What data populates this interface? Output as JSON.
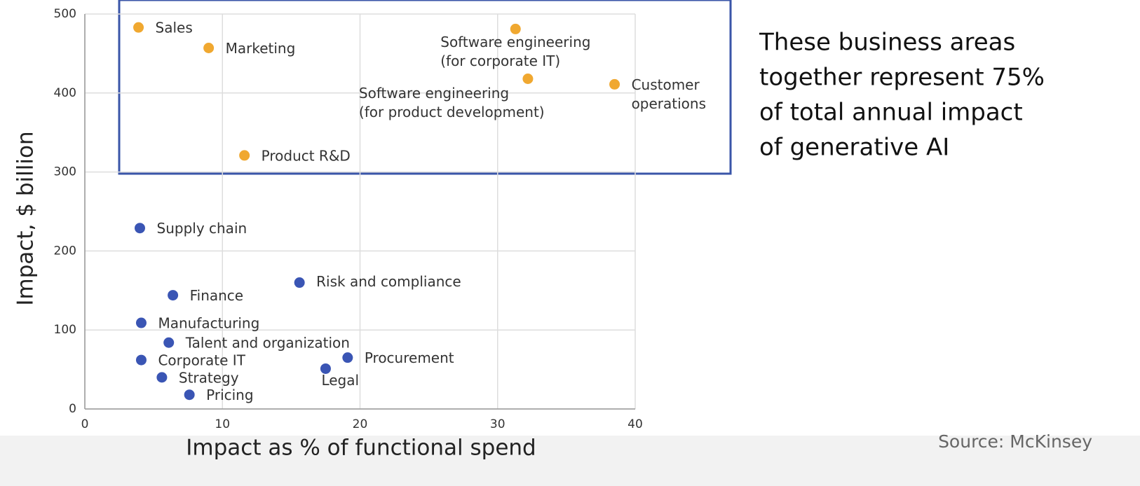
{
  "chart_data": {
    "type": "scatter",
    "xlabel": "Impact as % of functional spend",
    "ylabel": "Impact, $ billion",
    "xlim": [
      0,
      40
    ],
    "xticks": [
      0,
      10,
      20,
      30,
      40
    ],
    "ylim": [
      0,
      500
    ],
    "yticks": [
      0,
      100,
      200,
      300,
      400,
      500
    ],
    "grid": true,
    "points": [
      {
        "label": [
          "Sales"
        ],
        "x": 3.9,
        "y": 483,
        "color": "#f0a830"
      },
      {
        "label": [
          "Marketing"
        ],
        "x": 9.0,
        "y": 457,
        "color": "#f0a830"
      },
      {
        "label": [
          "Software engineering",
          "(for corporate IT)"
        ],
        "x": 31.3,
        "y": 481,
        "color": "#f0a830"
      },
      {
        "label": [
          "Software engineering",
          "(for product development)"
        ],
        "x": 32.2,
        "y": 418,
        "color": "#f0a830"
      },
      {
        "label": [
          "Customer",
          "operations"
        ],
        "x": 38.5,
        "y": 411,
        "color": "#f0a830"
      },
      {
        "label": [
          "Product R&D"
        ],
        "x": 11.6,
        "y": 321,
        "color": "#f0a830"
      },
      {
        "label": [
          "Supply chain"
        ],
        "x": 4.0,
        "y": 229,
        "color": "#3a55b4"
      },
      {
        "label": [
          "Finance"
        ],
        "x": 6.4,
        "y": 144,
        "color": "#3a55b4"
      },
      {
        "label": [
          "Risk and compliance"
        ],
        "x": 15.6,
        "y": 160,
        "color": "#3a55b4"
      },
      {
        "label": [
          "Manufacturing"
        ],
        "x": 4.1,
        "y": 109,
        "color": "#3a55b4"
      },
      {
        "label": [
          "Talent and organization"
        ],
        "x": 6.1,
        "y": 84,
        "color": "#3a55b4"
      },
      {
        "label": [
          "Corporate IT"
        ],
        "x": 4.1,
        "y": 62,
        "color": "#3a55b4"
      },
      {
        "label": [
          "Procurement"
        ],
        "x": 19.1,
        "y": 65,
        "color": "#3a55b4"
      },
      {
        "label": [
          "Legal"
        ],
        "x": 17.5,
        "y": 51,
        "color": "#3a55b4"
      },
      {
        "label": [
          "Strategy"
        ],
        "x": 5.6,
        "y": 40,
        "color": "#3a55b4"
      },
      {
        "label": [
          "Pricing"
        ],
        "x": 7.6,
        "y": 18,
        "color": "#3a55b4"
      }
    ],
    "annotation": [
      "These business areas",
      "together represent 75%",
      "of total annual impact",
      "of generative AI"
    ],
    "source": "Source: McKinsey"
  }
}
